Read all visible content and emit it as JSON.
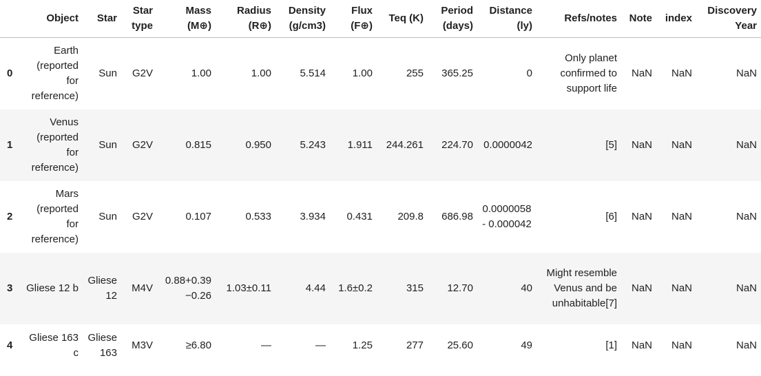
{
  "columns": [
    "",
    "Object",
    "Star",
    "Star type",
    "Mass (M⊕)",
    "Radius (R⊕)",
    "Density (g/cm3)",
    "Flux (F⊕)",
    "Teq (K)",
    "Period (days)",
    "Distance (ly)",
    "Refs/notes",
    "Note",
    "index",
    "Discovery Year"
  ],
  "rows": [
    {
      "idx": "0",
      "object": "Earth (reported for reference)",
      "star": "Sun",
      "star_type": "G2V",
      "mass": "1.00",
      "radius": "1.00",
      "density": "5.514",
      "flux": "1.00",
      "teq": "255",
      "period": "365.25",
      "distance": "0",
      "refs": "Only planet confirmed to support life",
      "note": "NaN",
      "index": "NaN",
      "year": "NaN"
    },
    {
      "idx": "1",
      "object": "Venus (reported for reference)",
      "star": "Sun",
      "star_type": "G2V",
      "mass": "0.815",
      "radius": "0.950",
      "density": "5.243",
      "flux": "1.911",
      "teq": "244.261",
      "period": "224.70",
      "distance": "0.0000042",
      "refs": "[5]",
      "note": "NaN",
      "index": "NaN",
      "year": "NaN"
    },
    {
      "idx": "2",
      "object": "Mars (reported for reference)",
      "star": "Sun",
      "star_type": "G2V",
      "mass": "0.107",
      "radius": "0.533",
      "density": "3.934",
      "flux": "0.431",
      "teq": "209.8",
      "period": "686.98",
      "distance": "0.0000058 - 0.000042",
      "refs": "[6]",
      "note": "NaN",
      "index": "NaN",
      "year": "NaN"
    },
    {
      "idx": "3",
      "object": "Gliese 12 b",
      "star": "Gliese 12",
      "star_type": "M4V",
      "mass": "0.88+0.39\n−0.26",
      "radius": "1.03±0.11",
      "density": "4.44",
      "flux": "1.6±0.2",
      "teq": "315",
      "period": "12.70",
      "distance": "40",
      "refs": "Might resemble Venus and be unhabitable[7]",
      "note": "NaN",
      "index": "NaN",
      "year": "NaN"
    },
    {
      "idx": "4",
      "object": "Gliese 163 c",
      "star": "Gliese 163",
      "star_type": "M3V",
      "mass": "≥6.80",
      "radius": "—",
      "density": "—",
      "flux": "1.25",
      "teq": "277",
      "period": "25.60",
      "distance": "49",
      "refs": "[1]",
      "note": "NaN",
      "index": "NaN",
      "year": "NaN"
    }
  ]
}
